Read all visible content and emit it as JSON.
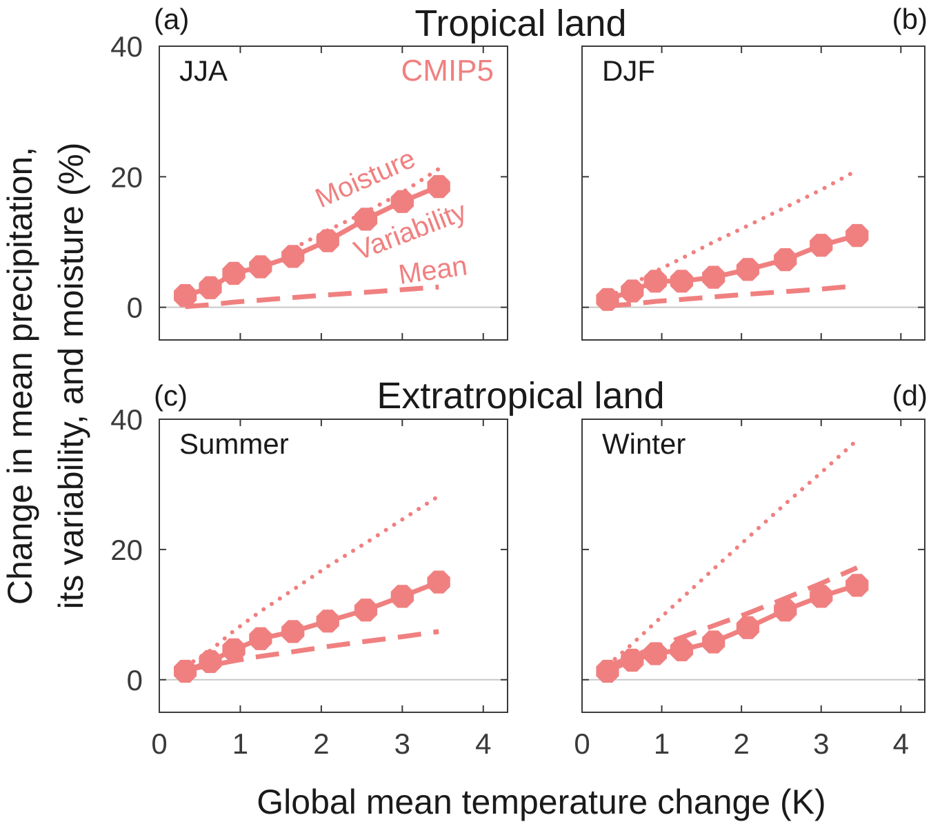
{
  "colors": {
    "series": "#f08080",
    "zero_line": "#c8c8c8",
    "axes": "#3a3a3a"
  },
  "figure": {
    "xlabel": "Global mean temperature change (K)",
    "ylabel_lines": [
      "Change in mean precipitation,",
      "its variability, and moisture (%)"
    ],
    "row_titles": [
      "Tropical land",
      "Extratropical land"
    ],
    "model_label": "CMIP5",
    "annotations": {
      "moisture": "Moisture",
      "variability": "Variability",
      "mean": "Mean"
    }
  },
  "chart_data": [
    {
      "type": "line",
      "panel": "(a)",
      "region": "Tropical land",
      "season": "JJA",
      "xlim": [
        0,
        4.3
      ],
      "ylim": [
        -5,
        40
      ],
      "xticks": [
        0,
        1,
        2,
        3,
        4
      ],
      "yticks": [
        0,
        20,
        40
      ],
      "x": [
        0.32,
        0.63,
        0.92,
        1.25,
        1.65,
        2.08,
        2.55,
        3.0,
        3.45
      ],
      "series": [
        {
          "name": "Variability",
          "style": "solid-markers",
          "values": [
            1.8,
            3.0,
            5.2,
            6.2,
            7.8,
            10.2,
            13.5,
            16.2,
            18.5
          ]
        },
        {
          "name": "Mean",
          "style": "dashed",
          "values": [
            0.1,
            0.4,
            0.8,
            1.1,
            1.5,
            1.9,
            2.3,
            2.7,
            3.1
          ]
        },
        {
          "name": "Moisture",
          "style": "dotted",
          "values": [
            null,
            null,
            null,
            null,
            9.0,
            11.8,
            14.6,
            17.6,
            21.2
          ]
        }
      ]
    },
    {
      "type": "line",
      "panel": "(b)",
      "region": "Tropical land",
      "season": "DJF",
      "xlim": [
        0,
        4.3
      ],
      "ylim": [
        -5,
        40
      ],
      "xticks": [
        0,
        1,
        2,
        3,
        4
      ],
      "yticks": [
        0,
        20,
        40
      ],
      "x": [
        0.32,
        0.63,
        0.92,
        1.25,
        1.65,
        2.08,
        2.55,
        3.0,
        3.45
      ],
      "series": [
        {
          "name": "Variability",
          "style": "solid-markers",
          "values": [
            1.2,
            2.5,
            4.0,
            4.0,
            4.6,
            5.8,
            7.3,
            9.5,
            11.0
          ]
        },
        {
          "name": "Mean",
          "style": "dashed",
          "values": [
            0.2,
            0.5,
            0.9,
            1.2,
            1.6,
            2.0,
            2.4,
            2.8,
            3.3
          ]
        },
        {
          "name": "Moisture",
          "style": "dotted",
          "values": [
            1.5,
            3.5,
            5.5,
            7.5,
            10.0,
            12.5,
            15.3,
            18.0,
            21.0
          ]
        }
      ]
    },
    {
      "type": "line",
      "panel": "(c)",
      "region": "Extratropical land",
      "season": "Summer",
      "xlim": [
        0,
        4.3
      ],
      "ylim": [
        -5,
        40
      ],
      "xticks": [
        0,
        1,
        2,
        3,
        4
      ],
      "yticks": [
        0,
        20,
        40
      ],
      "x": [
        0.32,
        0.63,
        0.92,
        1.25,
        1.65,
        2.08,
        2.55,
        3.0,
        3.45
      ],
      "series": [
        {
          "name": "Variability",
          "style": "solid-markers",
          "values": [
            1.3,
            2.8,
            4.6,
            6.3,
            7.4,
            9.0,
            10.7,
            12.8,
            15.0
          ]
        },
        {
          "name": "Mean",
          "style": "dashed",
          "values": [
            1.5,
            2.2,
            2.9,
            3.6,
            4.3,
            5.1,
            5.9,
            6.6,
            7.4
          ]
        },
        {
          "name": "Moisture",
          "style": "dotted",
          "values": [
            2.0,
            4.5,
            7.5,
            10.5,
            13.8,
            17.4,
            21.0,
            24.6,
            28.2
          ]
        }
      ]
    },
    {
      "type": "line",
      "panel": "(d)",
      "region": "Extratropical land",
      "season": "Winter",
      "xlim": [
        0,
        4.3
      ],
      "ylim": [
        -5,
        40
      ],
      "xticks": [
        0,
        1,
        2,
        3,
        4
      ],
      "yticks": [
        0,
        20,
        40
      ],
      "x": [
        0.32,
        0.63,
        0.92,
        1.25,
        1.65,
        2.08,
        2.55,
        3.0,
        3.45
      ],
      "series": [
        {
          "name": "Variability",
          "style": "solid-markers",
          "values": [
            1.3,
            3.0,
            4.0,
            4.6,
            5.8,
            8.0,
            10.7,
            12.8,
            14.5
          ]
        },
        {
          "name": "Mean",
          "style": "dashed",
          "values": [
            2.0,
            3.6,
            5.0,
            6.5,
            8.3,
            10.2,
            12.5,
            14.8,
            17.2
          ]
        },
        {
          "name": "Moisture",
          "style": "dotted",
          "values": [
            2.2,
            5.5,
            8.8,
            12.5,
            17.0,
            21.8,
            27.0,
            31.8,
            36.8
          ]
        }
      ]
    }
  ]
}
